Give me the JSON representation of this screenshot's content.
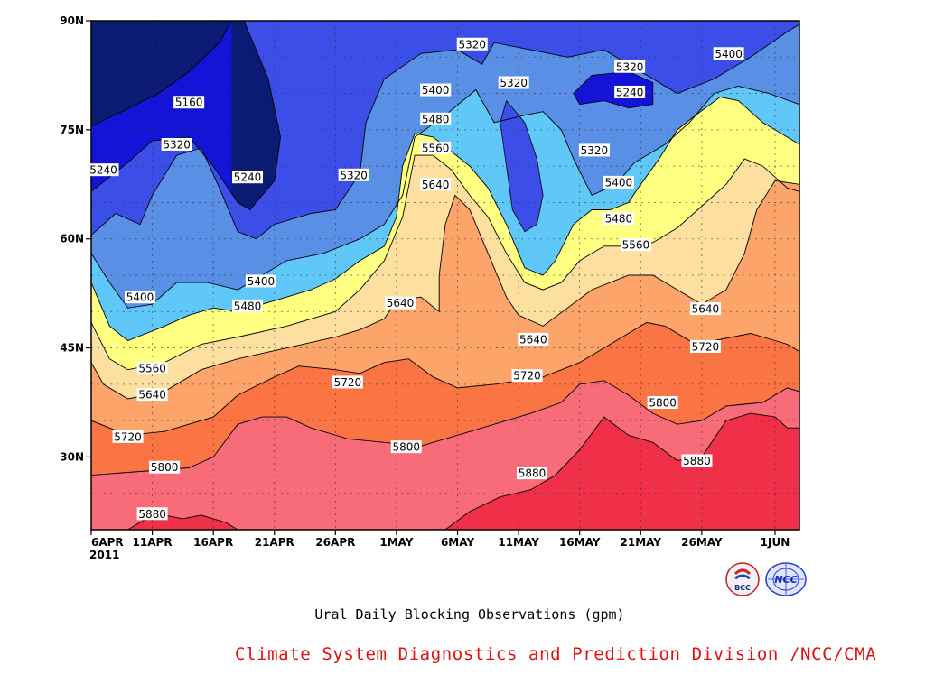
{
  "chart_data": {
    "type": "heatmap",
    "title": "Ural Daily Blocking Observations (gpm)",
    "x_tick_labels": [
      "6APR",
      "11APR",
      "16APR",
      "21APR",
      "26APR",
      "1MAY",
      "6MAY",
      "11MAY",
      "16MAY",
      "21MAY",
      "26MAY",
      "1JUN"
    ],
    "x_tick_days": [
      0,
      5,
      10,
      15,
      20,
      25,
      30,
      35,
      40,
      45,
      50,
      56
    ],
    "x_year_label": "2011",
    "xlim_days": [
      0,
      58
    ],
    "y_tick_labels": [
      "30N",
      "45N",
      "60N",
      "75N",
      "90N"
    ],
    "y_tick_values": [
      30,
      45,
      60,
      75,
      90
    ],
    "ylim": [
      20,
      90
    ],
    "grid": true,
    "levels": [
      5160,
      5240,
      5320,
      5400,
      5480,
      5560,
      5640,
      5720,
      5800,
      5880
    ],
    "colors": [
      "#0b1a73",
      "#1414d8",
      "#3c4ee8",
      "#5a8fe6",
      "#5fc8f8",
      "#ffff82",
      "#fde0a0",
      "#fca46a",
      "#fb7444",
      "#f76c78",
      "#ef3048"
    ],
    "boundaries": {
      "5160": [
        [
          0,
          75.5
        ],
        [
          2.5,
          77.5
        ],
        [
          5.5,
          80
        ],
        [
          8,
          83
        ],
        [
          10.5,
          87
        ],
        [
          11.5,
          90
        ]
      ],
      "5240": [
        [
          0,
          66.5
        ],
        [
          3,
          70.5
        ],
        [
          5,
          73.5
        ],
        [
          8,
          74
        ],
        [
          10,
          70
        ],
        [
          12,
          65
        ],
        [
          13,
          64
        ],
        [
          15,
          68
        ],
        [
          15.5,
          74
        ],
        [
          14.5,
          82
        ],
        [
          12.5,
          90
        ]
      ],
      "5320": [
        [
          0,
          60.5
        ],
        [
          2,
          63.5
        ],
        [
          4,
          62
        ],
        [
          5,
          66
        ],
        [
          7,
          71.5
        ],
        [
          9,
          72.5
        ],
        [
          10.5,
          67
        ],
        [
          12,
          61
        ],
        [
          13.5,
          60
        ],
        [
          15,
          62
        ],
        [
          18,
          63.5
        ],
        [
          20,
          64
        ],
        [
          22,
          69
        ],
        [
          22.5,
          76
        ],
        [
          24,
          82
        ],
        [
          27,
          85.5
        ],
        [
          30,
          86
        ],
        [
          32,
          84
        ],
        [
          33,
          87
        ],
        [
          36,
          86
        ],
        [
          39,
          85
        ],
        [
          42,
          86
        ],
        [
          45,
          83
        ],
        [
          48,
          80
        ],
        [
          51,
          82
        ],
        [
          54,
          85
        ],
        [
          57,
          88.5
        ],
        [
          58,
          89.5
        ]
      ],
      "5400": [
        [
          0,
          58
        ],
        [
          1.5,
          54
        ],
        [
          3,
          50.5
        ],
        [
          5,
          51
        ],
        [
          7,
          54
        ],
        [
          9.5,
          54
        ],
        [
          12,
          53
        ],
        [
          14,
          55
        ],
        [
          16,
          57
        ],
        [
          19,
          58
        ],
        [
          22,
          60
        ],
        [
          24,
          62
        ],
        [
          25.5,
          66
        ],
        [
          26.5,
          74
        ],
        [
          29,
          77
        ],
        [
          31.5,
          80.5
        ],
        [
          33,
          76
        ],
        [
          35.5,
          77
        ],
        [
          37,
          77.5
        ],
        [
          38.5,
          75
        ],
        [
          39.5,
          71
        ],
        [
          41,
          66
        ],
        [
          43,
          67.5
        ],
        [
          44.5,
          70.5
        ],
        [
          45.5,
          71.5
        ],
        [
          47,
          73
        ],
        [
          49,
          76
        ],
        [
          51,
          80
        ],
        [
          53,
          81
        ],
        [
          55.5,
          80
        ],
        [
          58,
          78.5
        ]
      ],
      "5480": [
        [
          0,
          54
        ],
        [
          1.5,
          48
        ],
        [
          3,
          46
        ],
        [
          6,
          48
        ],
        [
          8,
          49.5
        ],
        [
          10,
          50.5
        ],
        [
          12,
          50
        ],
        [
          16,
          52
        ],
        [
          18,
          53
        ],
        [
          20,
          54.5
        ],
        [
          22,
          57
        ],
        [
          24,
          59
        ],
        [
          25,
          63
        ],
        [
          25.5,
          70
        ],
        [
          26.5,
          74.5
        ],
        [
          28,
          74
        ],
        [
          29.5,
          72
        ],
        [
          31,
          70
        ],
        [
          32.5,
          67
        ],
        [
          34,
          62
        ],
        [
          35.5,
          56
        ],
        [
          37,
          55
        ],
        [
          38,
          57
        ],
        [
          39.5,
          62
        ],
        [
          41,
          64
        ],
        [
          42.5,
          64
        ],
        [
          44,
          65
        ],
        [
          45,
          67.5
        ],
        [
          46.5,
          71
        ],
        [
          48,
          75
        ],
        [
          49.5,
          77
        ],
        [
          51.5,
          79.5
        ],
        [
          53,
          79
        ],
        [
          55,
          76
        ],
        [
          58,
          73
        ]
      ],
      "5560": [
        [
          0,
          48.5
        ],
        [
          1.5,
          43.5
        ],
        [
          3,
          42
        ],
        [
          6,
          43
        ],
        [
          9,
          45.5
        ],
        [
          12,
          46.5
        ],
        [
          16,
          48
        ],
        [
          20,
          50
        ],
        [
          22,
          53
        ],
        [
          24,
          57
        ],
        [
          25.5,
          63
        ],
        [
          26.5,
          71.5
        ],
        [
          28,
          71.5
        ],
        [
          29.5,
          69.5
        ],
        [
          31,
          66
        ],
        [
          32.5,
          63
        ],
        [
          34,
          58
        ],
        [
          35.5,
          54
        ],
        [
          37,
          53
        ],
        [
          38.5,
          54
        ],
        [
          40,
          57
        ],
        [
          42,
          59
        ],
        [
          44,
          59
        ],
        [
          46,
          59.5
        ],
        [
          48,
          61.5
        ],
        [
          50,
          64.5
        ],
        [
          52,
          67.5
        ],
        [
          53.5,
          71
        ],
        [
          55,
          70
        ],
        [
          57,
          67
        ],
        [
          58,
          66.5
        ]
      ],
      "5640": [
        [
          0,
          43
        ],
        [
          1,
          40
        ],
        [
          3,
          38
        ],
        [
          6,
          39
        ],
        [
          9,
          42
        ],
        [
          12,
          43.5
        ],
        [
          16,
          45
        ],
        [
          20,
          46.5
        ],
        [
          22,
          47.5
        ],
        [
          24,
          49
        ],
        [
          25,
          51.5
        ],
        [
          27,
          52
        ],
        [
          28.5,
          50
        ],
        [
          28.5,
          55
        ],
        [
          29,
          62
        ],
        [
          29.8,
          66
        ],
        [
          31,
          64
        ],
        [
          32.5,
          58
        ],
        [
          34,
          52
        ],
        [
          35,
          49.5
        ],
        [
          37,
          48
        ],
        [
          39,
          50.5
        ],
        [
          41,
          53
        ],
        [
          44,
          55
        ],
        [
          46,
          55
        ],
        [
          48,
          53
        ],
        [
          50,
          51
        ],
        [
          52,
          53
        ],
        [
          53.5,
          58
        ],
        [
          54.5,
          64
        ],
        [
          56,
          68
        ],
        [
          58,
          67.5
        ]
      ],
      "5720": [
        [
          0,
          35
        ],
        [
          3,
          33
        ],
        [
          6,
          33.5
        ],
        [
          10,
          35.5
        ],
        [
          12,
          38.5
        ],
        [
          15,
          41
        ],
        [
          17,
          42.5
        ],
        [
          20,
          42
        ],
        [
          22,
          41.5
        ],
        [
          24,
          43
        ],
        [
          26,
          43.5
        ],
        [
          28,
          41
        ],
        [
          30,
          39.5
        ],
        [
          33,
          40
        ],
        [
          37,
          41
        ],
        [
          40,
          43
        ],
        [
          43,
          46
        ],
        [
          45.5,
          48.5
        ],
        [
          47,
          48
        ],
        [
          49,
          46
        ],
        [
          51,
          46
        ],
        [
          54,
          47
        ],
        [
          57,
          45.5
        ],
        [
          58,
          44.5
        ]
      ],
      "5800": [
        [
          0,
          27.5
        ],
        [
          4,
          28
        ],
        [
          8,
          28.5
        ],
        [
          10,
          30
        ],
        [
          12,
          34.5
        ],
        [
          14,
          35.5
        ],
        [
          16,
          35.5
        ],
        [
          18,
          34
        ],
        [
          21,
          32.5
        ],
        [
          24,
          32
        ],
        [
          27,
          31.5
        ],
        [
          30,
          33
        ],
        [
          33,
          34.5
        ],
        [
          36,
          36
        ],
        [
          38.5,
          37.5
        ],
        [
          40,
          40
        ],
        [
          42,
          40.5
        ],
        [
          44,
          38.5
        ],
        [
          46,
          36
        ],
        [
          48,
          34.5
        ],
        [
          50,
          35
        ],
        [
          52,
          37
        ],
        [
          55,
          37.5
        ],
        [
          57,
          39.5
        ],
        [
          58,
          39
        ]
      ],
      "5880": [
        [
          3,
          20
        ],
        [
          4.5,
          21.5
        ],
        [
          6,
          22
        ],
        [
          7.5,
          21.5
        ],
        [
          9,
          22
        ],
        [
          11,
          21
        ],
        [
          12,
          20
        ],
        [
          29,
          20
        ],
        [
          31,
          22.5
        ],
        [
          33.5,
          24.5
        ],
        [
          36,
          25.5
        ],
        [
          38,
          27.5
        ],
        [
          40,
          31
        ],
        [
          42,
          35.5
        ],
        [
          44,
          33
        ],
        [
          46,
          32
        ],
        [
          48,
          29.5
        ],
        [
          50,
          30
        ],
        [
          52,
          35
        ],
        [
          54,
          36
        ],
        [
          56,
          35.5
        ],
        [
          57,
          34
        ],
        [
          58,
          34
        ]
      ]
    },
    "contour_labels": [
      {
        "text": "5160",
        "x": 8,
        "y": 78.8
      },
      {
        "text": "5240",
        "x": 1,
        "y": 69.5
      },
      {
        "text": "5320",
        "x": 7,
        "y": 73
      },
      {
        "text": "5240",
        "x": 12.8,
        "y": 68.5
      },
      {
        "text": "5320",
        "x": 21.5,
        "y": 68.8
      },
      {
        "text": "5320",
        "x": 31.2,
        "y": 86.8
      },
      {
        "text": "5320",
        "x": 34.6,
        "y": 81.5
      },
      {
        "text": "5400",
        "x": 28.2,
        "y": 80.5
      },
      {
        "text": "5480",
        "x": 28.2,
        "y": 76.5
      },
      {
        "text": "5560",
        "x": 28.2,
        "y": 72.5
      },
      {
        "text": "5640",
        "x": 28.2,
        "y": 67.5
      },
      {
        "text": "5320",
        "x": 44.1,
        "y": 83.7
      },
      {
        "text": "5240",
        "x": 44.1,
        "y": 80.2
      },
      {
        "text": "5400",
        "x": 52.2,
        "y": 85.5
      },
      {
        "text": "5320",
        "x": 41.2,
        "y": 72.2
      },
      {
        "text": "5400",
        "x": 43.2,
        "y": 67.8
      },
      {
        "text": "5480",
        "x": 43.2,
        "y": 62.8
      },
      {
        "text": "5560",
        "x": 44.6,
        "y": 59.2
      },
      {
        "text": "5400",
        "x": 4,
        "y": 52
      },
      {
        "text": "5400",
        "x": 13.9,
        "y": 54.2
      },
      {
        "text": "5480",
        "x": 12.8,
        "y": 50.8
      },
      {
        "text": "5640",
        "x": 25.3,
        "y": 51.2
      },
      {
        "text": "5640",
        "x": 36.2,
        "y": 46.2
      },
      {
        "text": "5640",
        "x": 50.3,
        "y": 50.4
      },
      {
        "text": "5560",
        "x": 5,
        "y": 42.2
      },
      {
        "text": "5640",
        "x": 5,
        "y": 38.6
      },
      {
        "text": "5720",
        "x": 21,
        "y": 40.3
      },
      {
        "text": "5720",
        "x": 35.7,
        "y": 41.2
      },
      {
        "text": "5720",
        "x": 50.3,
        "y": 45.2
      },
      {
        "text": "5720",
        "x": 3,
        "y": 32.8
      },
      {
        "text": "5800",
        "x": 6,
        "y": 28.6
      },
      {
        "text": "5800",
        "x": 25.8,
        "y": 31.4
      },
      {
        "text": "5800",
        "x": 46.8,
        "y": 37.5
      },
      {
        "text": "5880",
        "x": 49.6,
        "y": 29.5
      },
      {
        "text": "5880",
        "x": 36.1,
        "y": 27.8
      },
      {
        "text": "5880",
        "x": 5,
        "y": 22.2
      }
    ]
  },
  "footer": {
    "title": "Ural Daily Blocking Observations (gpm)",
    "credit": "Climate System Diagnostics and Prediction Division /NCC/CMA",
    "logo_left_text": "BCC",
    "logo_right_text": "NCC"
  }
}
